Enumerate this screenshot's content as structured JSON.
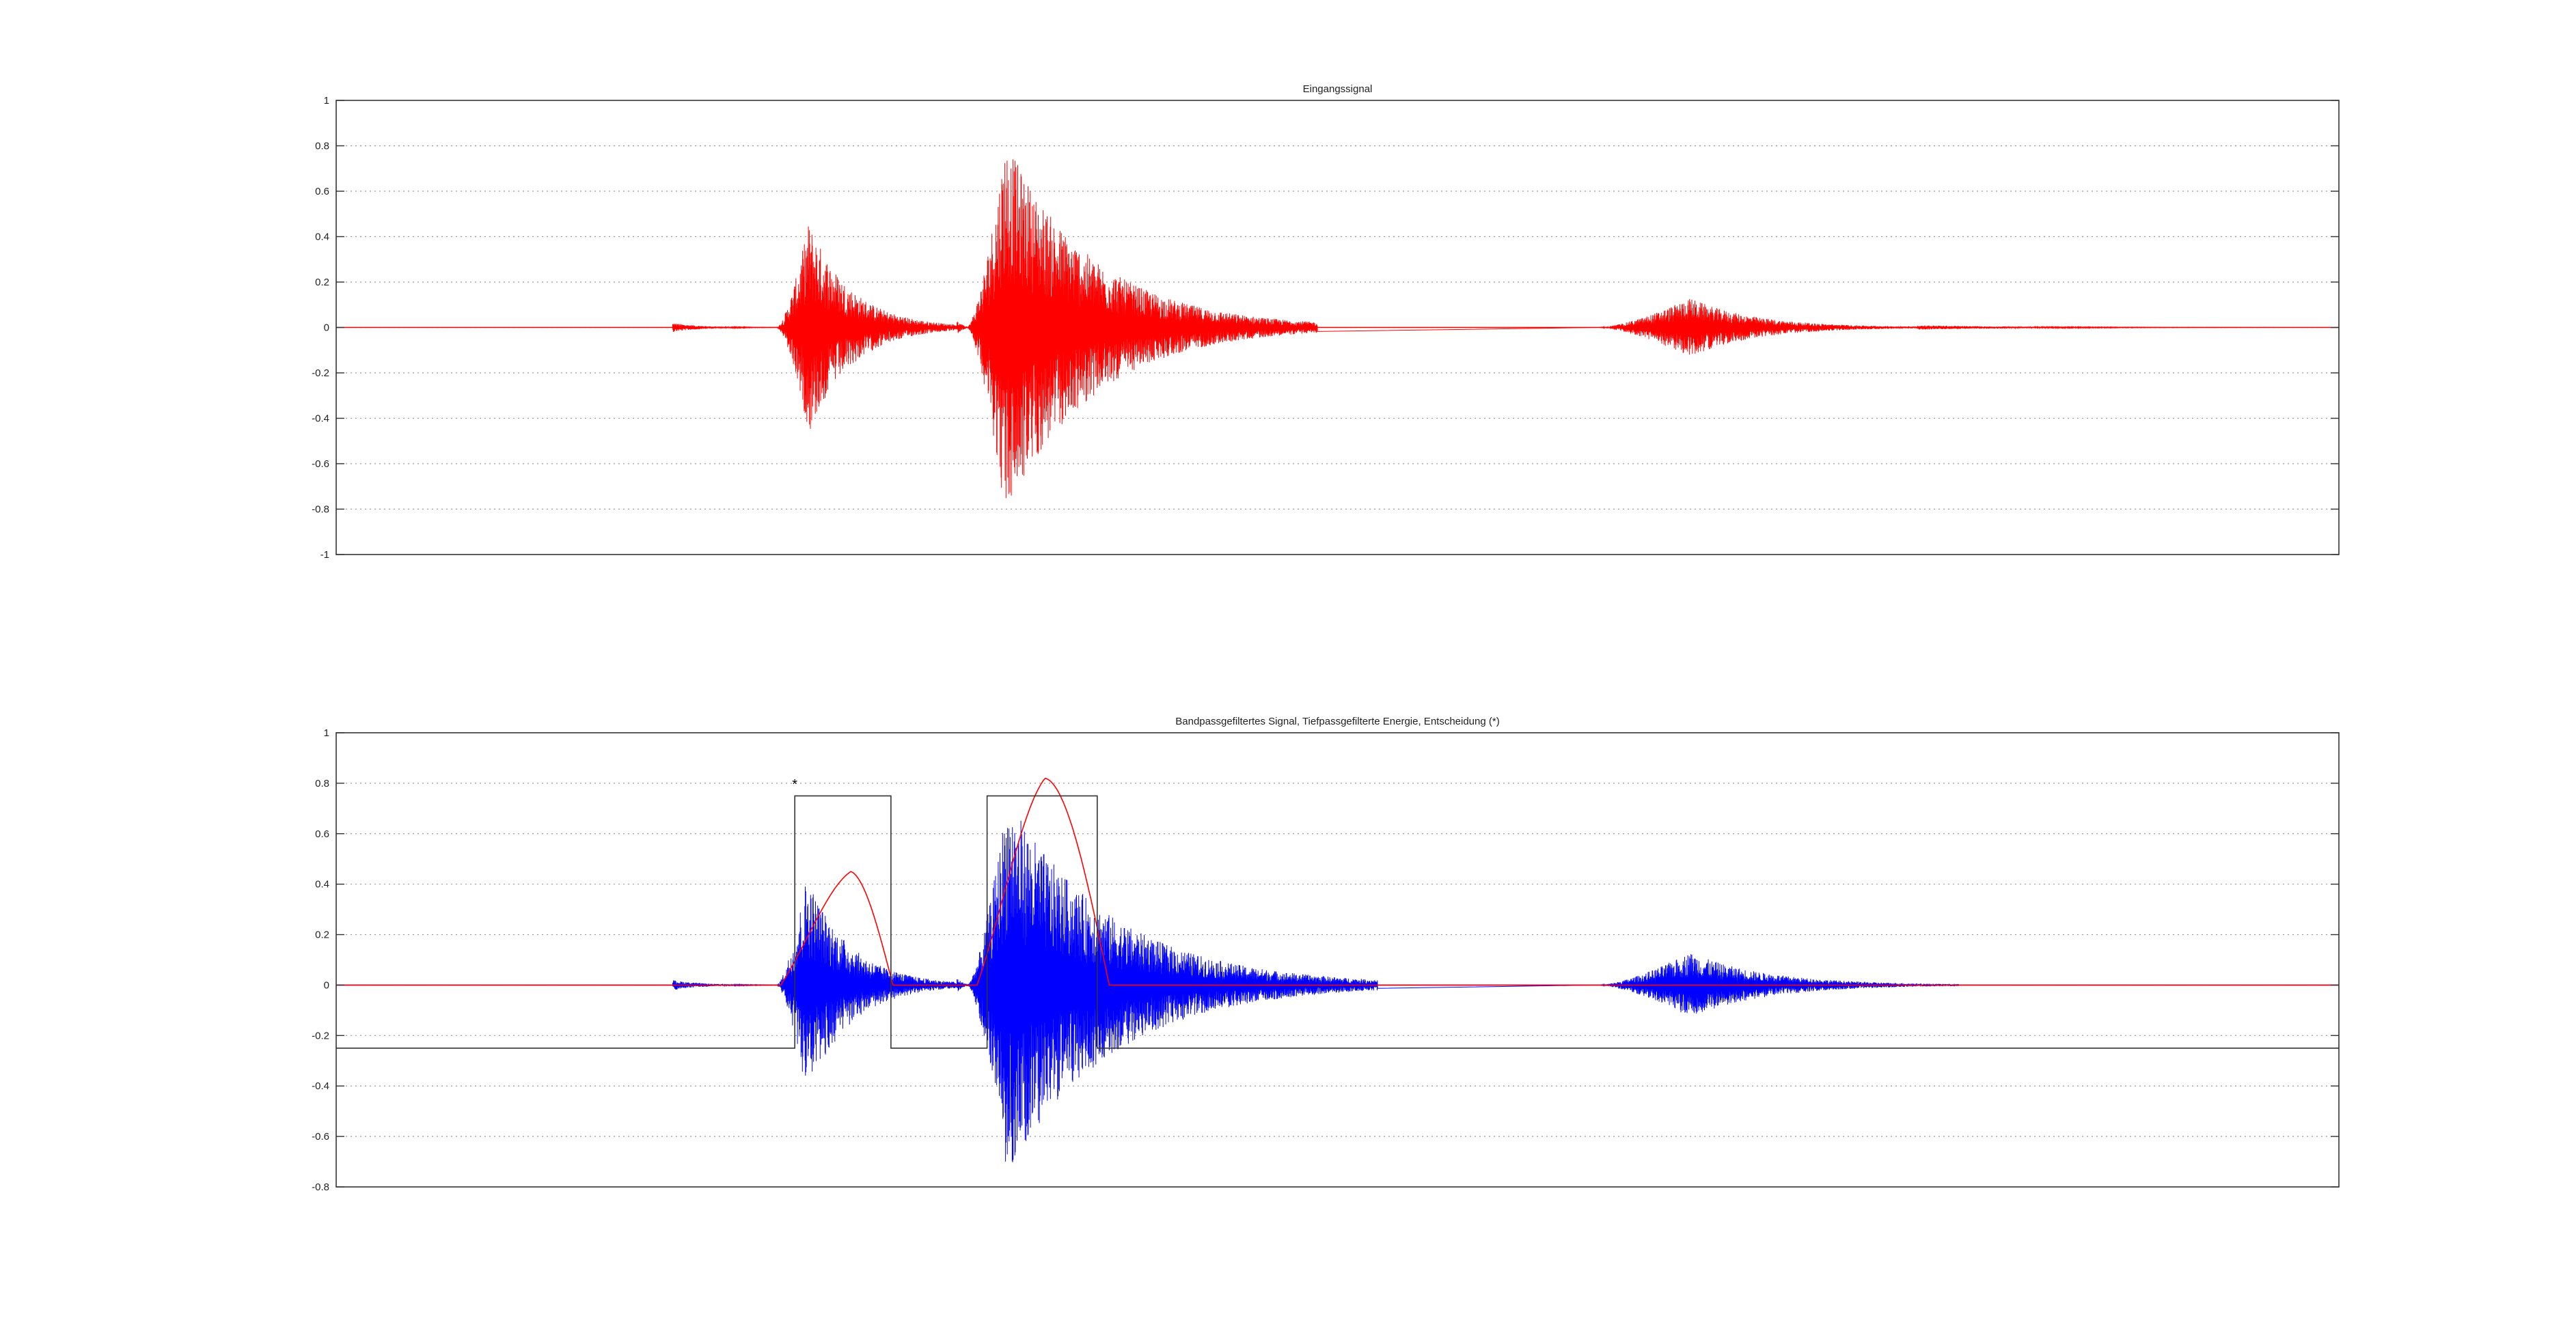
{
  "chart_data": [
    {
      "type": "line",
      "title": "Eingangssignal",
      "xlabel": "",
      "ylabel": "",
      "ylim": [
        -1,
        1
      ],
      "yticks": [
        -1,
        -0.8,
        -0.6,
        -0.4,
        -0.2,
        0,
        0.2,
        0.4,
        0.6,
        0.8,
        1
      ],
      "ytick_labels": [
        "-1",
        "-0.8",
        "-0.6",
        "-0.4",
        "-0.2",
        "0",
        "0.2",
        "0.4",
        "0.6",
        "0.8",
        "1"
      ],
      "xlim": [
        0,
        1
      ],
      "grid": true,
      "colors": {
        "signal": "#ff0000",
        "baseline": "#ff0000"
      },
      "series": [
        {
          "kind": "oscillation",
          "color": "#ff0000",
          "bursts": [
            {
              "x_start": 0.168,
              "x_end": 0.22,
              "peak": 0.02
            },
            {
              "x_start": 0.22,
              "x_end": 0.31,
              "peak": 0.47,
              "x_peak": 0.236
            },
            {
              "x_start": 0.31,
              "x_end": 0.32,
              "peak": 0.03
            },
            {
              "x_start": 0.315,
              "x_end": 0.49,
              "peak": 0.83,
              "x_peak": 0.334
            },
            {
              "x_start": 0.63,
              "x_end": 0.79,
              "peak": 0.13,
              "x_peak": 0.676
            },
            {
              "x_start": 0.79,
              "x_end": 0.97,
              "peak": 0.01
            }
          ]
        }
      ]
    },
    {
      "type": "line",
      "title": "Bandpassgefiltertes Signal, Tiefpassgefilterte Energie, Entscheidung (*)",
      "xlabel": "",
      "ylabel": "",
      "ylim": [
        -0.8,
        1
      ],
      "yticks": [
        -0.8,
        -0.6,
        -0.4,
        -0.2,
        0,
        0.2,
        0.4,
        0.6,
        0.8,
        1
      ],
      "ytick_labels": [
        "-0.8",
        "-0.6",
        "-0.4",
        "-0.2",
        "0",
        "0.2",
        "0.4",
        "0.6",
        "0.8",
        "1"
      ],
      "xlim": [
        0,
        1
      ],
      "grid": true,
      "colors": {
        "signal": "#0000ff",
        "energy": "#ff0000",
        "decision": "#333333"
      },
      "marker": {
        "symbol": "*",
        "x": 0.229,
        "y": 0.8
      },
      "series": [
        {
          "kind": "oscillation",
          "color": "#0000ff",
          "bursts": [
            {
              "x_start": 0.168,
              "x_end": 0.22,
              "peak": 0.02
            },
            {
              "x_start": 0.22,
              "x_end": 0.31,
              "peak": 0.44,
              "x_peak": 0.235
            },
            {
              "x_start": 0.31,
              "x_end": 0.32,
              "peak": 0.03
            },
            {
              "x_start": 0.315,
              "x_end": 0.52,
              "peak": 0.75,
              "x_peak": 0.335
            },
            {
              "x_start": 0.63,
              "x_end": 0.81,
              "peak": 0.13,
              "x_peak": 0.676
            }
          ]
        },
        {
          "kind": "energy",
          "color": "#ff0000",
          "humps": [
            {
              "x_start": 0.222,
              "x_end": 0.278,
              "x_peak": 0.257,
              "peak": 0.45
            },
            {
              "x_start": 0.32,
              "x_end": 0.386,
              "x_peak": 0.354,
              "peak": 0.82
            }
          ]
        },
        {
          "kind": "step",
          "color": "#333333",
          "x": [
            0,
            0.229,
            0.229,
            0.277,
            0.277,
            0.325,
            0.325,
            0.38,
            0.38,
            1
          ],
          "y": [
            -0.25,
            -0.25,
            0.75,
            0.75,
            -0.25,
            -0.25,
            0.75,
            0.75,
            -0.25,
            -0.25
          ]
        }
      ]
    }
  ]
}
